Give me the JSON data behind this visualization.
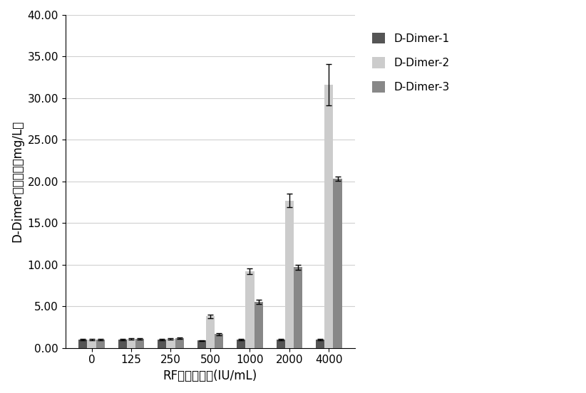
{
  "categories": [
    "0",
    "125",
    "250",
    "500",
    "1000",
    "2000",
    "4000"
  ],
  "series": [
    {
      "name": "D-Dimer-1",
      "values": [
        1.0,
        1.0,
        1.0,
        0.9,
        1.0,
        1.0,
        1.0
      ],
      "errors": [
        0.05,
        0.05,
        0.05,
        0.05,
        0.05,
        0.05,
        0.05
      ],
      "color": "#555555"
    },
    {
      "name": "D-Dimer-2",
      "values": [
        1.0,
        1.1,
        1.1,
        3.8,
        9.2,
        17.7,
        31.6
      ],
      "errors": [
        0.05,
        0.08,
        0.08,
        0.2,
        0.35,
        0.8,
        2.5
      ],
      "color": "#cccccc"
    },
    {
      "name": "D-Dimer-3",
      "values": [
        1.0,
        1.1,
        1.2,
        1.65,
        5.5,
        9.7,
        20.3
      ],
      "errors": [
        0.05,
        0.08,
        0.1,
        0.1,
        0.25,
        0.3,
        0.25
      ],
      "color": "#888888"
    }
  ],
  "xlabel": "RF干扰物浓度(IU/mL)",
  "ylabel_prefix": "D-Dimer",
  "ylabel_suffix": "测试浓度（mg/L）",
  "ylim": [
    0,
    40
  ],
  "yticks": [
    0.0,
    5.0,
    10.0,
    15.0,
    20.0,
    25.0,
    30.0,
    35.0,
    40.0
  ],
  "ytick_labels": [
    "0.00",
    "5.00",
    "10.00",
    "15.00",
    "20.00",
    "25.00",
    "30.00",
    "35.00",
    "40.00"
  ],
  "bar_width": 0.22,
  "background_color": "#ffffff",
  "grid_color": "#d0d0d0"
}
